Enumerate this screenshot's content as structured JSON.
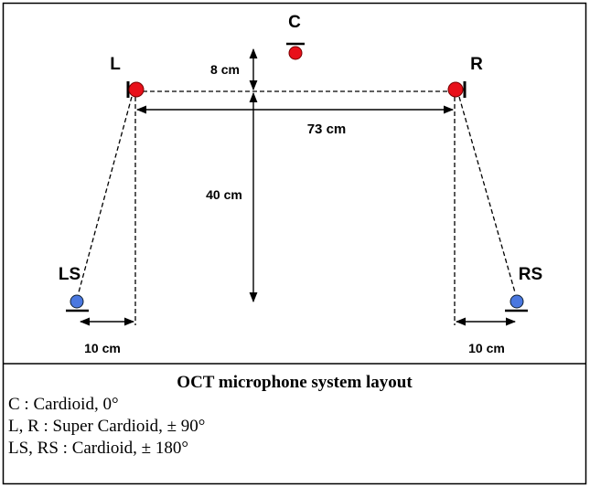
{
  "labels": {
    "c": "C",
    "l": "L",
    "r": "R",
    "ls": "LS",
    "rs": "RS"
  },
  "dimensions": {
    "top": "8 cm",
    "width": "73 cm",
    "depth": "40 cm",
    "left_offset": "10 cm",
    "right_offset": "10 cm"
  },
  "caption": {
    "title": "OCT microphone system layout",
    "lines": [
      "C : Cardioid, 0°",
      "L, R : Super Cardioid, ± 90°",
      "LS, RS : Cardioid,  ± 180°"
    ]
  }
}
